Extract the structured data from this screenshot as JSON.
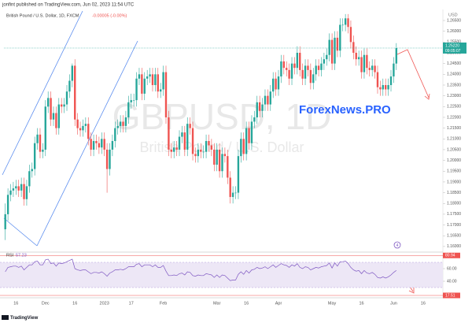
{
  "chart_data": {
    "type": "candlestick",
    "header": "jonfint published on TradingView.com, Jun 02, 2023 11:54 UTC",
    "symbol": "British Pound / U.S. Dollar, 1D, FXCM",
    "change": "-0.00005 (-0.00%)",
    "watermark": "GBPUSD, 1D",
    "watermark_sub": "British Pound / U.S. Dollar",
    "brand": "ForexNews.PRO",
    "currency": "USD",
    "footer": "TradingView",
    "event_badge": "4",
    "up_color": "#26a69a",
    "down_color": "#ef5350",
    "categories": [
      null,
      null,
      null,
      null,
      "16",
      null,
      null,
      null,
      null,
      null,
      null,
      null,
      null,
      null,
      null,
      "Dec",
      null,
      null,
      null,
      null,
      null,
      null,
      null,
      null,
      null,
      null,
      "16",
      null,
      null,
      null,
      null,
      null,
      null,
      null,
      null,
      null,
      null,
      "2023",
      null,
      null,
      null,
      null,
      null,
      null,
      null,
      null,
      null,
      "17",
      null,
      null,
      null,
      null,
      null,
      null,
      null,
      null,
      null,
      null,
      null,
      "Feb",
      null,
      null,
      null,
      null,
      null,
      null,
      null,
      null,
      null,
      null,
      null,
      null,
      null,
      null,
      null,
      null,
      null,
      null,
      null,
      "Mar",
      null,
      null,
      null,
      null,
      null,
      null,
      null,
      null,
      null,
      null,
      "16",
      null,
      null,
      null,
      null,
      null,
      null,
      null,
      null,
      null,
      null,
      null,
      "Apr",
      null,
      null,
      null,
      null,
      null,
      null,
      null,
      null,
      null,
      null,
      null,
      null,
      null,
      null,
      null,
      null,
      null,
      null,
      null,
      "May",
      null,
      null,
      null,
      null,
      null,
      null,
      null,
      null,
      null,
      null,
      "16",
      null,
      null,
      null,
      null,
      null,
      null,
      null,
      null,
      null,
      null,
      null,
      "Jun",
      null,
      null,
      null,
      null,
      null,
      null,
      null,
      null,
      null,
      null,
      "16",
      null,
      null,
      null,
      null,
      null,
      null
    ],
    "open": [
      1.168,
      1.175,
      1.184,
      1.186,
      1.187,
      1.188,
      1.186,
      1.189,
      1.182,
      1.188,
      1.195,
      1.196,
      1.208,
      1.212,
      1.204,
      1.205,
      1.225,
      1.229,
      1.219,
      1.222,
      1.215,
      1.226,
      1.225,
      1.226,
      1.232,
      1.237,
      1.244,
      1.219,
      1.215,
      1.214,
      1.216,
      1.217,
      1.21,
      1.205,
      1.209,
      1.208,
      1.206,
      1.21,
      1.205,
      1.196,
      1.205,
      1.209,
      1.215,
      1.216,
      1.218,
      1.216,
      1.22,
      1.227,
      1.228,
      1.228,
      1.238,
      1.24,
      1.231,
      1.238,
      1.239,
      1.24,
      1.235,
      1.24,
      1.232,
      1.233,
      1.241,
      1.22,
      1.205,
      1.204,
      1.206,
      1.205,
      1.211,
      1.213,
      1.205,
      1.217,
      1.215,
      1.203,
      1.202,
      1.205,
      1.204,
      1.204,
      1.209,
      1.207,
      1.205,
      1.198,
      1.205,
      1.195,
      1.203,
      1.202,
      1.192,
      1.183,
      1.185,
      1.185,
      1.202,
      1.21,
      1.203,
      1.215,
      1.208,
      1.218,
      1.22,
      1.227,
      1.223,
      1.226,
      1.23,
      1.226,
      1.232,
      1.238,
      1.233,
      1.239,
      1.246,
      1.243,
      1.242,
      1.238,
      1.245,
      1.243,
      1.25,
      1.242,
      1.238,
      1.244,
      1.242,
      1.236,
      1.24,
      1.244,
      1.242,
      1.245,
      1.247,
      1.249,
      1.256,
      1.245,
      1.257,
      1.251,
      1.263,
      1.263,
      1.266,
      1.262,
      1.255,
      1.25,
      1.247,
      1.248,
      1.241,
      1.249,
      1.243,
      1.242,
      1.244,
      1.241,
      1.234,
      1.233,
      1.235,
      1.233,
      1.235,
      1.239,
      1.245,
      null,
      null,
      null,
      null,
      null,
      null,
      null,
      null,
      null,
      null,
      null,
      null,
      null,
      null,
      null,
      null
    ],
    "high": [
      1.18,
      1.187,
      1.189,
      1.19,
      1.191,
      1.191,
      1.192,
      1.192,
      1.191,
      1.198,
      1.199,
      1.211,
      1.215,
      1.215,
      1.208,
      1.228,
      1.232,
      1.232,
      1.225,
      1.225,
      1.229,
      1.229,
      1.229,
      1.235,
      1.24,
      1.245,
      1.247,
      1.222,
      1.218,
      1.219,
      1.22,
      1.22,
      1.213,
      1.212,
      1.212,
      1.211,
      1.213,
      1.213,
      1.208,
      1.208,
      1.212,
      1.218,
      1.219,
      1.221,
      1.221,
      1.223,
      1.23,
      1.231,
      1.231,
      1.241,
      1.243,
      1.243,
      1.241,
      1.242,
      1.243,
      1.243,
      1.243,
      1.243,
      1.236,
      1.244,
      1.244,
      1.223,
      1.208,
      1.209,
      1.209,
      1.214,
      1.216,
      1.216,
      1.22,
      1.22,
      1.218,
      1.206,
      1.208,
      1.208,
      1.207,
      1.212,
      1.212,
      1.21,
      1.208,
      1.208,
      1.208,
      1.206,
      1.206,
      1.205,
      1.195,
      1.188,
      1.188,
      1.205,
      1.213,
      1.213,
      1.218,
      1.218,
      1.221,
      1.223,
      1.23,
      1.23,
      1.229,
      1.233,
      1.233,
      1.235,
      1.241,
      1.241,
      1.242,
      1.249,
      1.249,
      1.246,
      1.245,
      1.248,
      1.248,
      1.253,
      1.253,
      1.245,
      1.247,
      1.247,
      1.245,
      1.243,
      1.247,
      1.247,
      1.248,
      1.25,
      1.252,
      1.259,
      1.259,
      1.26,
      1.26,
      1.266,
      1.266,
      1.268,
      1.268,
      1.265,
      1.258,
      1.253,
      1.251,
      1.251,
      1.252,
      1.252,
      1.246,
      1.247,
      1.247,
      1.244,
      1.237,
      1.238,
      1.238,
      1.238,
      1.242,
      1.248,
      1.2545,
      null,
      null,
      null,
      null,
      null,
      null,
      null,
      null,
      null,
      null,
      null,
      null,
      null,
      null,
      null,
      null
    ],
    "low": [
      1.163,
      1.172,
      1.181,
      1.183,
      1.184,
      1.183,
      1.183,
      1.179,
      1.179,
      1.185,
      1.192,
      1.193,
      1.205,
      1.201,
      1.201,
      1.202,
      1.222,
      1.216,
      1.216,
      1.212,
      1.212,
      1.222,
      1.222,
      1.223,
      1.229,
      1.234,
      1.216,
      1.212,
      1.211,
      1.211,
      1.213,
      1.207,
      1.202,
      1.202,
      1.205,
      1.203,
      1.203,
      1.202,
      1.185,
      1.193,
      1.202,
      1.206,
      1.212,
      1.213,
      1.213,
      1.213,
      1.217,
      1.224,
      1.225,
      1.225,
      1.235,
      1.228,
      1.228,
      1.235,
      1.236,
      1.232,
      1.232,
      1.229,
      1.229,
      1.23,
      1.217,
      1.202,
      1.201,
      1.201,
      1.202,
      1.202,
      1.208,
      1.202,
      1.202,
      1.212,
      1.2,
      1.199,
      1.199,
      1.201,
      1.201,
      1.201,
      1.204,
      1.202,
      1.195,
      1.195,
      1.192,
      1.192,
      1.199,
      1.189,
      1.18,
      1.18,
      1.182,
      1.182,
      1.199,
      1.2,
      1.2,
      1.205,
      1.205,
      1.215,
      1.217,
      1.22,
      1.22,
      1.223,
      1.223,
      1.223,
      1.229,
      1.23,
      1.23,
      1.236,
      1.24,
      1.239,
      1.235,
      1.235,
      1.24,
      1.24,
      1.239,
      1.235,
      1.235,
      1.239,
      1.233,
      1.233,
      1.237,
      1.239,
      1.239,
      1.242,
      1.244,
      1.246,
      1.242,
      1.242,
      1.248,
      1.248,
      1.26,
      1.26,
      1.259,
      1.252,
      1.247,
      1.244,
      1.244,
      1.238,
      1.238,
      1.24,
      1.239,
      1.239,
      1.238,
      1.231,
      1.23,
      1.23,
      1.23,
      1.23,
      1.232,
      1.236,
      1.242,
      null,
      null,
      null,
      null,
      null,
      null,
      null,
      null,
      null,
      null,
      null,
      null,
      null,
      null,
      null,
      null
    ],
    "close": [
      1.175,
      1.184,
      1.186,
      1.187,
      1.188,
      1.186,
      1.189,
      1.182,
      1.188,
      1.195,
      1.196,
      1.208,
      1.212,
      1.204,
      1.205,
      1.225,
      1.229,
      1.219,
      1.222,
      1.215,
      1.226,
      1.225,
      1.226,
      1.232,
      1.237,
      1.244,
      1.219,
      1.215,
      1.214,
      1.216,
      1.217,
      1.21,
      1.205,
      1.209,
      1.208,
      1.206,
      1.21,
      1.205,
      1.196,
      1.205,
      1.209,
      1.215,
      1.216,
      1.218,
      1.216,
      1.22,
      1.227,
      1.228,
      1.228,
      1.238,
      1.24,
      1.231,
      1.238,
      1.239,
      1.24,
      1.235,
      1.24,
      1.232,
      1.233,
      1.241,
      1.22,
      1.205,
      1.204,
      1.206,
      1.205,
      1.211,
      1.213,
      1.205,
      1.217,
      1.215,
      1.203,
      1.202,
      1.205,
      1.204,
      1.204,
      1.209,
      1.207,
      1.205,
      1.198,
      1.205,
      1.195,
      1.203,
      1.202,
      1.192,
      1.183,
      1.185,
      1.185,
      1.202,
      1.21,
      1.203,
      1.215,
      1.208,
      1.218,
      1.22,
      1.227,
      1.223,
      1.226,
      1.23,
      1.226,
      1.232,
      1.238,
      1.233,
      1.239,
      1.246,
      1.243,
      1.242,
      1.238,
      1.245,
      1.243,
      1.25,
      1.242,
      1.238,
      1.244,
      1.242,
      1.236,
      1.24,
      1.244,
      1.242,
      1.245,
      1.247,
      1.249,
      1.256,
      1.245,
      1.257,
      1.251,
      1.263,
      1.263,
      1.266,
      1.262,
      1.255,
      1.25,
      1.247,
      1.248,
      1.241,
      1.249,
      1.243,
      1.242,
      1.244,
      1.241,
      1.234,
      1.233,
      1.235,
      1.233,
      1.235,
      1.239,
      1.245,
      1.2522,
      null,
      null,
      null,
      null,
      null,
      null,
      null,
      null,
      null,
      null,
      null,
      null,
      null,
      null,
      null,
      null
    ],
    "last_label": "1.25220",
    "countdown": "09:05:07",
    "ylim": [
      1.1574,
      1.2694
    ],
    "yticks": [
      {
        "value": 1.16,
        "label": "1.16000"
      },
      {
        "value": 1.165,
        "label": "1.16500"
      },
      {
        "value": 1.17,
        "label": "1.17000"
      },
      {
        "value": 1.175,
        "label": "1.17500"
      },
      {
        "value": 1.18,
        "label": "1.18000"
      },
      {
        "value": 1.185,
        "label": "1.18500"
      },
      {
        "value": 1.19,
        "label": "1.19000"
      },
      {
        "value": 1.195,
        "label": "1.19500"
      },
      {
        "value": 1.2,
        "label": "1.20000"
      },
      {
        "value": 1.205,
        "label": "1.20500"
      },
      {
        "value": 1.21,
        "label": "1.21000"
      },
      {
        "value": 1.215,
        "label": "1.21500"
      },
      {
        "value": 1.22,
        "label": "1.22000"
      },
      {
        "value": 1.225,
        "label": "1.22500"
      },
      {
        "value": 1.23,
        "label": "1.23000"
      },
      {
        "value": 1.235,
        "label": "1.23500"
      },
      {
        "value": 1.24,
        "label": "1.24000"
      },
      {
        "value": 1.245,
        "label": "1.24500"
      },
      {
        "value": 1.25,
        "label": "1.25000"
      },
      {
        "value": 1.255,
        "label": "1.25500"
      },
      {
        "value": 1.26,
        "label": "1.26000"
      },
      {
        "value": 1.265,
        "label": "1.26500"
      }
    ],
    "rsi": {
      "name": "RSI",
      "color": "#7e57c2",
      "values": [
        55,
        62,
        63,
        64,
        64,
        62,
        64,
        58,
        62,
        66,
        66,
        71,
        72,
        66,
        66,
        74,
        75,
        68,
        69,
        64,
        69,
        68,
        69,
        71,
        73,
        75,
        60,
        58,
        57,
        58,
        58,
        55,
        52,
        54,
        54,
        53,
        55,
        52,
        48,
        53,
        55,
        58,
        58,
        59,
        58,
        60,
        63,
        63,
        63,
        67,
        68,
        63,
        66,
        66,
        66,
        63,
        66,
        62,
        62,
        65,
        56,
        49,
        49,
        50,
        49,
        52,
        53,
        50,
        55,
        54,
        49,
        48,
        50,
        49,
        49,
        52,
        51,
        50,
        46,
        50,
        46,
        50,
        49,
        45,
        41,
        42,
        42,
        51,
        55,
        51,
        57,
        53,
        58,
        59,
        62,
        60,
        61,
        63,
        60,
        63,
        66,
        62,
        65,
        68,
        66,
        65,
        62,
        66,
        64,
        68,
        62,
        60,
        63,
        62,
        58,
        60,
        62,
        61,
        63,
        64,
        65,
        69,
        61,
        69,
        64,
        71,
        71,
        72,
        68,
        62,
        58,
        56,
        57,
        52,
        57,
        53,
        52,
        54,
        51,
        46,
        45,
        47,
        45,
        47,
        50,
        54,
        57.23,
        null,
        null,
        null,
        null,
        null,
        null,
        null,
        null,
        null,
        null,
        null,
        null,
        null,
        null,
        null,
        null
      ],
      "ylim": [
        13.75,
        86.25
      ],
      "yticks": [
        {
          "value": 60,
          "label": "60.00"
        },
        {
          "value": 40,
          "label": "40.00"
        }
      ],
      "bands": [
        70,
        30
      ],
      "levels": [
        {
          "value": 80.94,
          "label": "80.94"
        },
        {
          "value": 17.51,
          "label": "17.51"
        }
      ]
    }
  }
}
